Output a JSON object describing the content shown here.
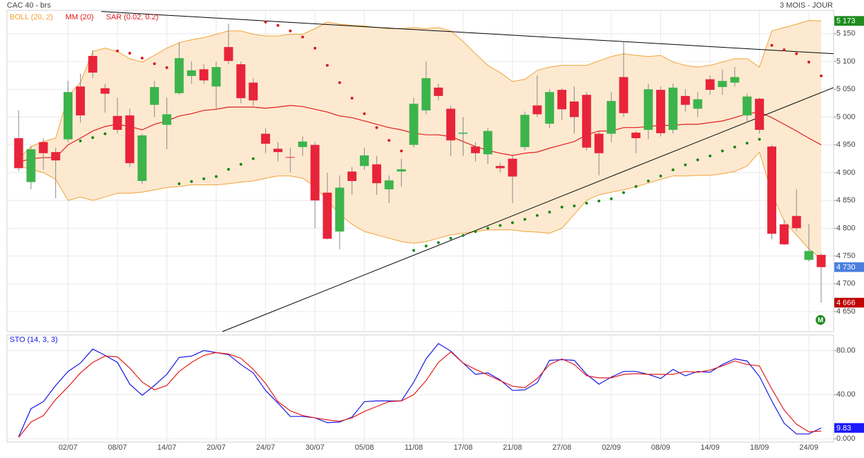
{
  "chart_data": [
    {
      "type": "candlestick",
      "title": "CAC 40 - brs",
      "subtitle": "3 MOIS - JOUR",
      "categories": [
        null,
        null,
        null,
        null,
        "02/07",
        null,
        null,
        null,
        "08/07",
        null,
        null,
        null,
        "14/07",
        null,
        null,
        null,
        "20/07",
        null,
        null,
        null,
        "24/07",
        null,
        null,
        null,
        "30/07",
        null,
        null,
        null,
        "05/08",
        null,
        null,
        null,
        "11/08",
        null,
        null,
        null,
        "17/08",
        null,
        null,
        null,
        "21/08",
        null,
        null,
        null,
        "27/08",
        null,
        null,
        null,
        "02/09",
        null,
        null,
        null,
        "08/09",
        null,
        null,
        null,
        "14/09",
        null,
        null,
        null,
        "18/09",
        null,
        null,
        null,
        "24/09",
        null
      ],
      "open": [
        4962,
        4883,
        4955,
        4937,
        4960,
        5055,
        5110,
        5052,
        5002,
        5003,
        4885,
        5022,
        4986,
        5043,
        5074,
        5086,
        5055,
        5126,
        5095,
        5062,
        4970,
        4943,
        4928,
        4946,
        4950,
        4864,
        4794,
        4902,
        4912,
        4915,
        4870,
        4902,
        4950,
        5012,
        5053,
        5015,
        4970,
        4947,
        4933,
        4912,
        4925,
        4946,
        5021,
        4988,
        5049,
        5028,
        5040,
        4970,
        4970,
        5072,
        4972,
        4977,
        5049,
        4977,
        5038,
        5015,
        5068,
        5054,
        5062,
        5003,
        5033,
        4947,
        4807,
        4822,
        4743,
        4752
      ],
      "high": [
        5012,
        4948,
        4962,
        4945,
        5065,
        5078,
        5120,
        5060,
        5035,
        5015,
        4970,
        5065,
        5035,
        5135,
        5100,
        5095,
        5100,
        5168,
        5100,
        5070,
        4980,
        4955,
        4945,
        4965,
        4955,
        4900,
        4895,
        4910,
        4945,
        4930,
        4895,
        4925,
        5035,
        5100,
        5060,
        5020,
        5000,
        4955,
        4980,
        4918,
        4930,
        5010,
        5075,
        5050,
        5052,
        5055,
        5045,
        4975,
        5045,
        5135,
        4975,
        5060,
        5055,
        5060,
        5050,
        5045,
        5075,
        5085,
        5090,
        5042,
        5035,
        4950,
        4815,
        4870,
        4808,
        4755
      ],
      "low": [
        4903,
        4870,
        4905,
        4854,
        4955,
        4990,
        5070,
        5008,
        4970,
        4910,
        4880,
        5000,
        4942,
        5040,
        5060,
        5060,
        5015,
        5095,
        5025,
        5020,
        4935,
        4920,
        4900,
        4930,
        4800,
        4780,
        4762,
        4860,
        4905,
        4860,
        4845,
        4875,
        4945,
        5005,
        5030,
        4930,
        4930,
        4920,
        4915,
        4900,
        4845,
        4940,
        5000,
        4980,
        4995,
        4970,
        4940,
        4895,
        4955,
        5000,
        4935,
        4960,
        4965,
        4970,
        5010,
        5000,
        5040,
        5040,
        5055,
        4990,
        4970,
        4780,
        4770,
        4795,
        4740,
        4666
      ],
      "close": [
        4908,
        4942,
        4935,
        4922,
        5045,
        5003,
        5080,
        5042,
        4977,
        4917,
        4967,
        5054,
        5005,
        5106,
        5084,
        5066,
        5090,
        5101,
        5034,
        5030,
        4952,
        4937,
        4927,
        4956,
        4850,
        4781,
        4873,
        4885,
        4931,
        4881,
        4886,
        4906,
        5024,
        5070,
        5038,
        4958,
        4972,
        4935,
        4975,
        4908,
        4893,
        5004,
        5005,
        5045,
        5014,
        5000,
        4945,
        4935,
        5029,
        5007,
        4962,
        5050,
        4971,
        5053,
        5022,
        5032,
        5049,
        5065,
        5072,
        5037,
        4977,
        4790,
        4771,
        4800,
        4759,
        4730
      ],
      "up_color": "#3cb44b",
      "down_color": "#e8243a",
      "bollinger": {
        "name": "BOLL (20, 2)",
        "color": "#f0a236",
        "fill": "#fde9d0",
        "upper": [
          4925,
          4947,
          4956,
          4962,
          5037,
          5062,
          5118,
          5124,
          5118,
          5105,
          5099,
          5111,
          5124,
          5134,
          5139,
          5143,
          5149,
          5155,
          5155,
          5149,
          5146,
          5146,
          5149,
          5149,
          5159,
          5171,
          5167,
          5165,
          5164,
          5161,
          5159,
          5159,
          5161,
          5159,
          5161,
          5155,
          5136,
          5114,
          5093,
          5080,
          5064,
          5068,
          5084,
          5090,
          5093,
          5093,
          5093,
          5101,
          5109,
          5114,
          5111,
          5109,
          5111,
          5099,
          5093,
          5090,
          5093,
          5099,
          5105,
          5105,
          5090,
          5155,
          5161,
          5167,
          5174,
          5173
        ],
        "lower": [
          4912,
          4906,
          4900,
          4888,
          4850,
          4856,
          4850,
          4856,
          4863,
          4863,
          4865,
          4869,
          4873,
          4875,
          4878,
          4878,
          4878,
          4880,
          4883,
          4885,
          4890,
          4894,
          4894,
          4890,
          4875,
          4850,
          4825,
          4807,
          4794,
          4788,
          4782,
          4776,
          4773,
          4776,
          4782,
          4788,
          4791,
          4794,
          4797,
          4797,
          4797,
          4794,
          4793,
          4791,
          4800,
          4825,
          4850,
          4860,
          4865,
          4869,
          4875,
          4881,
          4888,
          4894,
          4894,
          4895,
          4895,
          4898,
          4902,
          4912,
          4937,
          4863,
          4813,
          4788,
          4763,
          4745
        ]
      },
      "ma": {
        "name": "MM (20)",
        "color": "#e31a1a",
        "values": [
          4919,
          4925,
          4927,
          4927,
          4950,
          4962,
          4975,
          4983,
          4987,
          4983,
          4977,
          4987,
          4993,
          5002,
          5006,
          5012,
          5014,
          5018,
          5018,
          5018,
          5016,
          5018,
          5021,
          5019,
          5014,
          5009,
          5002,
          4999,
          4993,
          4987,
          4981,
          4977,
          4971,
          4968,
          4968,
          4965,
          4956,
          4947,
          4940,
          4935,
          4931,
          4935,
          4937,
          4944,
          4950,
          4956,
          4968,
          4975,
          4975,
          4981,
          4981,
          4983,
          4985,
          4985,
          4987,
          4987,
          4990,
          4993,
          4999,
          5006,
          5009,
          4999,
          4987,
          4975,
          4962,
          4950
        ]
      },
      "sar": {
        "name": "SAR (0.02, 0.2)",
        "color_above": "#d7191c",
        "color_below": "#118811",
        "values": [
          null,
          null,
          null,
          null,
          null,
          4957,
          4963,
          4970,
          5119,
          5115,
          5106,
          5096,
          5089,
          4880,
          4884,
          4889,
          4893,
          4906,
          4915,
          4925,
          5171,
          5165,
          5155,
          5144,
          5124,
          5093,
          5062,
          5034,
          5006,
          4981,
          4958,
          4939,
          4760,
          4768,
          4774,
          4782,
          4787,
          4794,
          4800,
          4805,
          4810,
          4816,
          4823,
          4829,
          4838,
          4840,
          4845,
          4849,
          4853,
          4864,
          4875,
          4885,
          4894,
          4905,
          4914,
          4923,
          4930,
          4939,
          4946,
          4953,
          4960,
          5129,
          5121,
          5114,
          5099,
          5074
        ]
      },
      "trendlines": [
        {
          "x": [
            6.7,
            66
          ],
          "y": [
            5190,
            5114
          ],
          "color": "#000000"
        },
        {
          "x": [
            16.5,
            66
          ],
          "y": [
            4614,
            5053
          ],
          "color": "#000000"
        }
      ],
      "ylim": [
        4614,
        5192
      ],
      "yticks": [
        {
          "value": 4650,
          "label": "4 650"
        },
        {
          "value": 4700,
          "label": "4 700"
        },
        {
          "value": 4750,
          "label": "4 750"
        },
        {
          "value": 4800,
          "label": "4 800"
        },
        {
          "value": 4850,
          "label": "4 850"
        },
        {
          "value": 4900,
          "label": "4 900"
        },
        {
          "value": 4950,
          "label": "4 950"
        },
        {
          "value": 5000,
          "label": "5 000"
        },
        {
          "value": 5050,
          "label": "5 050"
        },
        {
          "value": 5100,
          "label": "5 100"
        },
        {
          "value": 5150,
          "label": "5 150"
        }
      ],
      "value_labels": [
        {
          "value": 5173,
          "label": "5 173",
          "color": "#1e8c1e"
        },
        {
          "value": 4730,
          "label": "4 730",
          "color": "#4a7fe0"
        },
        {
          "value": 4666,
          "label": "4 666",
          "color": "#c00000"
        }
      ],
      "marker": {
        "label": "M",
        "color": "#1e8c1e"
      },
      "grid": true
    },
    {
      "type": "line",
      "title": "STO (14, 3, 3)",
      "series": [
        {
          "color": "#1414e6",
          "values": [
            1.9,
            27.3,
            33.7,
            48.3,
            61,
            68.6,
            81.3,
            75.6,
            69.2,
            49.5,
            39.4,
            48.3,
            58.4,
            73.7,
            74.9,
            80,
            78.1,
            76.2,
            67.3,
            59.7,
            43.8,
            32.4,
            20.3,
            20.3,
            19,
            14.6,
            15.2,
            19.7,
            33.7,
            34.3,
            34.3,
            34.3,
            51.4,
            72.4,
            86.3,
            79.4,
            68.6,
            58.4,
            59.7,
            53.3,
            43.8,
            44.4,
            50.8,
            71.1,
            71.7,
            71.1,
            58.4,
            49.5,
            55.9,
            61,
            61,
            58.4,
            54.6,
            62.9,
            57.1,
            61,
            60.3,
            67.3,
            72.4,
            70.5,
            56.5,
            34.3,
            14,
            4.4,
            4.4,
            9.83
          ]
        },
        {
          "color": "#e31a1a",
          "values": [
            1.3,
            15.2,
            21,
            35.6,
            47,
            59.7,
            69.2,
            74.9,
            74.3,
            64.1,
            51.4,
            44.4,
            48.3,
            61,
            69.2,
            75.6,
            78.1,
            76.8,
            73,
            62.9,
            50.2,
            33.7,
            25.4,
            21,
            19,
            17.1,
            15.9,
            19,
            24.8,
            29.2,
            33.7,
            34.3,
            40,
            52.7,
            69.2,
            78.7,
            68.6,
            62.9,
            57.8,
            52.7,
            47.6,
            46.3,
            54.6,
            67.3,
            72.4,
            67.3,
            57.1,
            55.2,
            55.2,
            58.4,
            59,
            58.4,
            58.4,
            58.4,
            61,
            60.3,
            62.2,
            66,
            70.5,
            67.3,
            66,
            45.1,
            26,
            13.3,
            6.3,
            7
          ]
        }
      ],
      "ylim": [
        -3,
        94
      ],
      "yticks": [
        {
          "value": 0,
          "label": "0.000"
        },
        {
          "value": 40,
          "label": "40.00"
        },
        {
          "value": 80,
          "label": "80.00"
        }
      ],
      "value_labels": [
        {
          "value": 9.83,
          "label": "9.83",
          "color": "#1a1aff"
        }
      ],
      "grid": true
    }
  ]
}
